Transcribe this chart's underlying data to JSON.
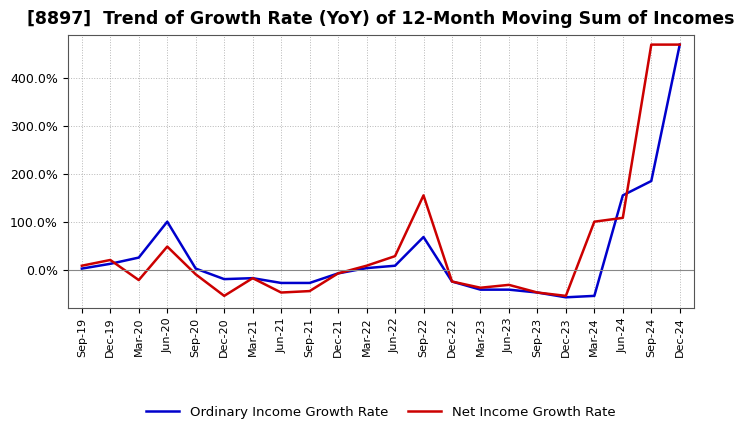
{
  "title": "[8897]  Trend of Growth Rate (YoY) of 12-Month Moving Sum of Incomes",
  "title_fontsize": 12.5,
  "background_color": "#ffffff",
  "plot_bg_color": "#ffffff",
  "grid_color": "#999999",
  "legend_labels": [
    "Ordinary Income Growth Rate",
    "Net Income Growth Rate"
  ],
  "legend_colors": [
    "#0000cc",
    "#cc0000"
  ],
  "line_width": 1.8,
  "x_labels": [
    "Sep-19",
    "Dec-19",
    "Mar-20",
    "Jun-20",
    "Sep-20",
    "Dec-20",
    "Mar-21",
    "Jun-21",
    "Sep-21",
    "Dec-21",
    "Mar-22",
    "Jun-22",
    "Sep-22",
    "Dec-22",
    "Mar-23",
    "Jun-23",
    "Sep-23",
    "Dec-23",
    "Mar-24",
    "Jun-24",
    "Sep-24",
    "Dec-24"
  ],
  "ordinary_income": [
    2.0,
    12.0,
    25.0,
    100.0,
    2.0,
    -20.0,
    -18.0,
    -28.0,
    -28.0,
    -8.0,
    3.0,
    8.0,
    68.0,
    -25.0,
    -42.0,
    -42.0,
    -48.0,
    -58.0,
    -55.0,
    155.0,
    185.0,
    470.0
  ],
  "net_income": [
    8.0,
    20.0,
    -22.0,
    48.0,
    -10.0,
    -55.0,
    -18.0,
    -48.0,
    -45.0,
    -8.0,
    8.0,
    28.0,
    155.0,
    -25.0,
    -38.0,
    -32.0,
    -48.0,
    -55.0,
    100.0,
    108.0,
    470.0,
    470.0
  ],
  "ylim": [
    -80,
    490
  ],
  "yticks": [
    0.0,
    100.0,
    200.0,
    300.0,
    400.0
  ],
  "ytick_labels": [
    "0.0%",
    "100.0%",
    "200.0%",
    "300.0%",
    "400.0%"
  ]
}
